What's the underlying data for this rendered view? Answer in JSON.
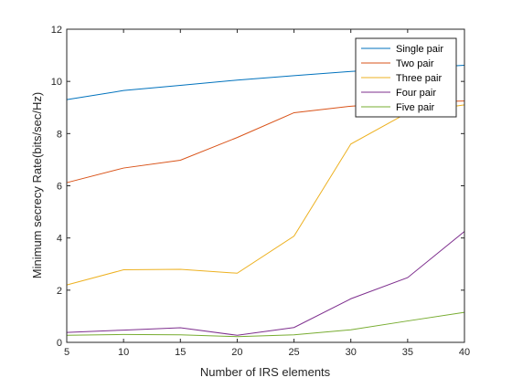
{
  "chart_data": {
    "type": "line",
    "title": "",
    "xlabel": "Number of IRS elements",
    "ylabel": "Minimum secrecy Rate(bits/sec/Hz)",
    "x": [
      5,
      10,
      15,
      20,
      25,
      30,
      35,
      40
    ],
    "xlim": [
      5,
      40
    ],
    "ylim": [
      0,
      12
    ],
    "xticks": [
      5,
      10,
      15,
      20,
      25,
      30,
      35,
      40
    ],
    "yticks": [
      0,
      2,
      4,
      6,
      8,
      10,
      12
    ],
    "grid": false,
    "legend": "top-right",
    "series": [
      {
        "name": "Single pair",
        "color": "#0072BD",
        "values": [
          9.3,
          9.65,
          9.85,
          10.05,
          10.22,
          10.38,
          10.5,
          10.62
        ]
      },
      {
        "name": "Two pair",
        "color": "#D95319",
        "values": [
          6.12,
          6.68,
          6.98,
          7.85,
          8.8,
          9.05,
          9.2,
          9.25
        ]
      },
      {
        "name": "Three pair",
        "color": "#EDB120",
        "values": [
          2.2,
          2.78,
          2.8,
          2.65,
          4.07,
          7.6,
          8.8,
          9.1
        ]
      },
      {
        "name": "Four pair",
        "color": "#7E2F8E",
        "values": [
          0.38,
          0.47,
          0.56,
          0.27,
          0.57,
          1.67,
          2.48,
          4.25
        ]
      },
      {
        "name": "Five pair",
        "color": "#77AC30",
        "values": [
          0.27,
          0.3,
          0.29,
          0.22,
          0.29,
          0.48,
          0.82,
          1.15
        ]
      }
    ]
  }
}
